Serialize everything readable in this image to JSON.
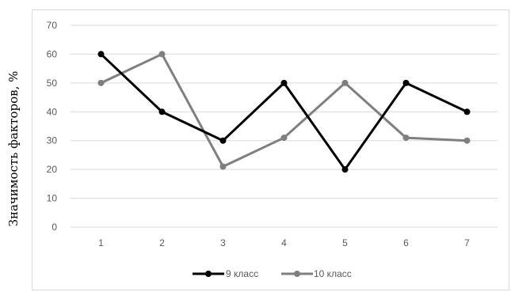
{
  "chart_data": {
    "type": "line",
    "title": "",
    "xlabel": "",
    "ylabel": "Значимость факторов, %",
    "categories": [
      "1",
      "2",
      "3",
      "4",
      "5",
      "6",
      "7"
    ],
    "ylim": [
      0,
      70
    ],
    "yticks": [
      "0",
      "10",
      "20",
      "30",
      "40",
      "50",
      "60",
      "70"
    ],
    "grid": true,
    "legend_position": "bottom",
    "series": [
      {
        "name": "9 класс",
        "color": "#000000",
        "values": [
          60,
          40,
          30,
          50,
          20,
          50,
          40
        ]
      },
      {
        "name": "10 класс",
        "color": "#7f7f7f",
        "values": [
          50,
          60,
          21,
          31,
          50,
          31,
          30
        ]
      }
    ]
  }
}
